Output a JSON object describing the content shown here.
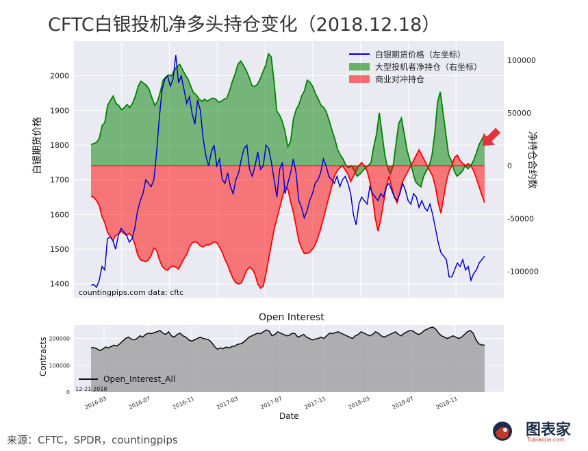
{
  "title": "CFTC白银投机净多头持仓变化（2018.12.18）",
  "footer": "来源：CFTC，SPDR，countingpips",
  "logo": {
    "text": "图表家",
    "subtext": "Tubiaojia.com"
  },
  "colors": {
    "price": "#0000cc",
    "speculators": "#008000",
    "commercial": "#ff0000",
    "bg": "#eaeaf2",
    "oi": "#111111",
    "arrow": "#e0333a"
  },
  "chart_data": [
    {
      "type": "line",
      "title": "",
      "ylabel_left": "白银期货价格",
      "ylabel_right": "净持仓合约数",
      "watermark": "countingpips.com      data: cftc",
      "ylim_left": [
        1360,
        2100
      ],
      "ylim_right": [
        -125000,
        118000
      ],
      "left_ticks": [
        "1400",
        "1500",
        "1600",
        "1700",
        "1800",
        "1900",
        "2000"
      ],
      "right_ticks": [
        "100000",
        "50000",
        "0",
        "-50000",
        "-100000"
      ],
      "series": [
        {
          "name": "白银期货价格（左坐标）",
          "axis": "left",
          "style": "line",
          "values": [
            1396,
            1398,
            1390,
            1410,
            1450,
            1440,
            1530,
            1535,
            1525,
            1500,
            1540,
            1560,
            1550,
            1540,
            1520,
            1530,
            1560,
            1610,
            1640,
            1660,
            1700,
            1690,
            1680,
            1700,
            1780,
            1880,
            1960,
            1990,
            2000,
            1970,
            1990,
            2060,
            1980,
            2000,
            1960,
            1920,
            1940,
            1890,
            1860,
            1930,
            1900,
            1820,
            1770,
            1740,
            1780,
            1800,
            1740,
            1760,
            1700,
            1690,
            1720,
            1680,
            1660,
            1700,
            1720,
            1760,
            1790,
            1800,
            1730,
            1710,
            1740,
            1780,
            1730,
            1740,
            1800,
            1790,
            1750,
            1700,
            1650,
            1730,
            1750,
            1660,
            1690,
            1720,
            1760,
            1720,
            1640,
            1620,
            1590,
            1610,
            1640,
            1660,
            1690,
            1700,
            1720,
            1760,
            1740,
            1710,
            1700,
            1690,
            1710,
            1680,
            1700,
            1710,
            1690,
            1660,
            1600,
            1570,
            1630,
            1650,
            1640,
            1630,
            1680,
            1660,
            1650,
            1640,
            1660,
            1650,
            1680,
            1690,
            1670,
            1650,
            1640,
            1660,
            1690,
            1670,
            1640,
            1630,
            1660,
            1650,
            1620,
            1640,
            1620,
            1610,
            1630,
            1600,
            1560,
            1520,
            1490,
            1480,
            1470,
            1420,
            1420,
            1440,
            1460,
            1450,
            1470,
            1440,
            1450,
            1410,
            1430,
            1440,
            1460,
            1470,
            1480
          ]
        },
        {
          "name": "大型投机者净持仓（右坐标）",
          "axis": "right",
          "style": "area",
          "values": [
            20000,
            21000,
            22000,
            26000,
            38000,
            41000,
            57000,
            62000,
            66000,
            59000,
            57000,
            53000,
            55000,
            58000,
            55000,
            59000,
            66000,
            75000,
            80000,
            78000,
            76000,
            72000,
            64000,
            57000,
            61000,
            70000,
            81000,
            84000,
            86000,
            85000,
            90000,
            94000,
            96000,
            91000,
            86000,
            82000,
            75000,
            69000,
            67000,
            63000,
            61000,
            63000,
            61000,
            63000,
            64000,
            63000,
            60000,
            61000,
            63000,
            64000,
            71000,
            80000,
            87000,
            96000,
            99000,
            95000,
            90000,
            84000,
            76000,
            75000,
            77000,
            82000,
            89000,
            95000,
            106000,
            103000,
            80000,
            52000,
            48000,
            42000,
            32000,
            18000,
            23000,
            44000,
            53000,
            58000,
            66000,
            71000,
            81000,
            79000,
            75000,
            68000,
            63000,
            57000,
            55000,
            50000,
            42000,
            33000,
            25000,
            15000,
            10000,
            6000,
            0,
            -2000,
            0,
            -5000,
            -10000,
            -8000,
            -5000,
            -2000,
            0,
            3000,
            18000,
            30000,
            50000,
            30000,
            10000,
            -2000,
            -8000,
            0,
            20000,
            40000,
            45000,
            30000,
            15000,
            5000,
            -5000,
            -15000,
            -18000,
            -20000,
            -10000,
            -5000,
            0,
            10000,
            30000,
            60000,
            70000,
            50000,
            30000,
            10000,
            5000,
            -5000,
            -10000,
            -8000,
            -5000,
            0,
            -3000,
            0,
            5000,
            12000,
            20000,
            25000,
            30000
          ]
        },
        {
          "name": "商业对冲持仓",
          "axis": "right",
          "style": "area",
          "values": [
            -29000,
            -30000,
            -33000,
            -38000,
            -48000,
            -54000,
            -63000,
            -67000,
            -71000,
            -66000,
            -65000,
            -62000,
            -64000,
            -66000,
            -64000,
            -67000,
            -74000,
            -84000,
            -89000,
            -90000,
            -91000,
            -89000,
            -85000,
            -78000,
            -80000,
            -89000,
            -95000,
            -98000,
            -99000,
            -96000,
            -95000,
            -96000,
            -98000,
            -93000,
            -88000,
            -84000,
            -77000,
            -73000,
            -72000,
            -73000,
            -76000,
            -77000,
            -75000,
            -75000,
            -74000,
            -72000,
            -73000,
            -77000,
            -82000,
            -89000,
            -94000,
            -101000,
            -107000,
            -111000,
            -112000,
            -111000,
            -105000,
            -99000,
            -96000,
            -98000,
            -103000,
            -112000,
            -116000,
            -114000,
            -102000,
            -88000,
            -74000,
            -60000,
            -50000,
            -40000,
            -30000,
            -20000,
            -22000,
            -34000,
            -44000,
            -57000,
            -71000,
            -78000,
            -83000,
            -83000,
            -82000,
            -79000,
            -75000,
            -68000,
            -60000,
            -50000,
            -40000,
            -30000,
            -20000,
            -10000,
            -5000,
            -2000,
            0,
            -4000,
            -8000,
            -15000,
            -10000,
            -5000,
            0,
            3000,
            0,
            -5000,
            -15000,
            -30000,
            -50000,
            -62000,
            -50000,
            -35000,
            -20000,
            -10000,
            -20000,
            -30000,
            -35000,
            -25000,
            -15000,
            -10000,
            -5000,
            0,
            5000,
            10000,
            15000,
            10000,
            5000,
            0,
            -5000,
            -10000,
            -20000,
            -35000,
            -45000,
            -30000,
            -15000,
            -5000,
            0,
            8000,
            10000,
            5000,
            2000,
            0,
            2000,
            0,
            -5000,
            -12000,
            -20000,
            -28000,
            -35000
          ]
        }
      ]
    },
    {
      "type": "area",
      "title": "Open Interest",
      "xlabel": "Date",
      "ylabel": "Contracts",
      "ylim": [
        0,
        250000
      ],
      "y_ticks": [
        "0",
        "100000",
        "200000"
      ],
      "x_ticks": [
        "2016-03",
        "2016-07",
        "2016-11",
        "2017-03",
        "2017-07",
        "2017-11",
        "2018-03",
        "2018-07",
        "2018-11"
      ],
      "date_label": "12-21-2018",
      "series": [
        {
          "name": "Open_Interest_All",
          "values": [
            165000,
            166000,
            162000,
            155000,
            160000,
            168000,
            165000,
            170000,
            175000,
            172000,
            180000,
            190000,
            200000,
            205000,
            198000,
            195000,
            200000,
            210000,
            205000,
            215000,
            220000,
            218000,
            222000,
            225000,
            230000,
            220000,
            215000,
            225000,
            210000,
            205000,
            215000,
            220000,
            210000,
            205000,
            195000,
            190000,
            195000,
            200000,
            205000,
            200000,
            198000,
            195000,
            185000,
            170000,
            160000,
            165000,
            162000,
            168000,
            165000,
            170000,
            172000,
            178000,
            180000,
            185000,
            195000,
            205000,
            210000,
            215000,
            220000,
            218000,
            225000,
            232000,
            228000,
            210000,
            215000,
            225000,
            220000,
            215000,
            210000,
            212000,
            220000,
            218000,
            205000,
            210000,
            215000,
            205000,
            200000,
            195000,
            198000,
            200000,
            205000,
            200000,
            210000,
            220000,
            218000,
            222000,
            225000,
            220000,
            215000,
            210000,
            205000,
            200000,
            210000,
            215000,
            225000,
            220000,
            215000,
            210000,
            215000,
            225000,
            220000,
            210000,
            205000,
            210000,
            215000,
            220000,
            225000,
            215000,
            210000,
            220000,
            225000,
            230000,
            228000,
            220000,
            215000,
            220000,
            230000,
            235000,
            240000,
            242000,
            235000,
            220000,
            210000,
            205000,
            200000,
            205000,
            210000,
            205000,
            200000,
            205000,
            215000,
            225000,
            230000,
            220000,
            195000,
            180000,
            176000,
            175000
          ]
        }
      ]
    }
  ]
}
